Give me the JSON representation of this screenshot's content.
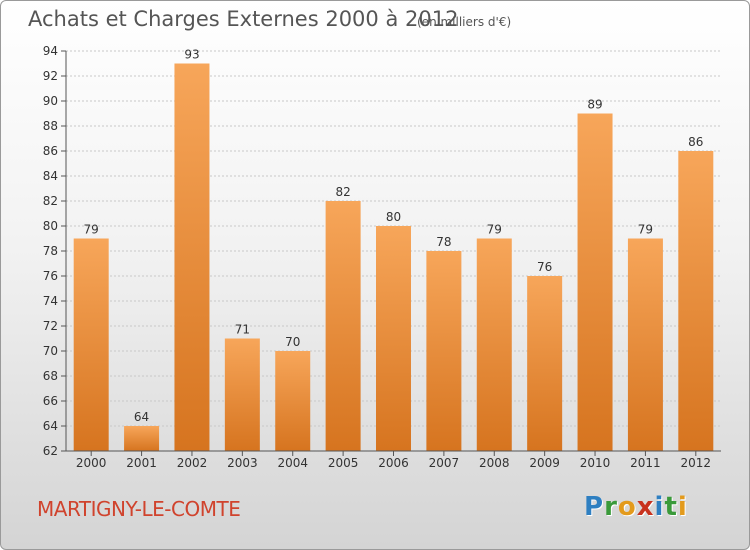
{
  "header": {
    "title": "Achats et Charges Externes 2000 à 2012",
    "subtitle": "(en milliers d'€)"
  },
  "footer": {
    "commune": "MARTIGNY-LE-COMTE",
    "brand": "Proxiti",
    "brand_letters": [
      {
        "char": "P",
        "color": "#2e7fc1"
      },
      {
        "char": "r",
        "color": "#3a9a3a"
      },
      {
        "char": "o",
        "color": "#e39a1c"
      },
      {
        "char": "x",
        "color": "#c8321e"
      },
      {
        "char": "i",
        "color": "#2e7fc1"
      },
      {
        "char": "t",
        "color": "#3a9a3a"
      },
      {
        "char": "i",
        "color": "#e39a1c"
      }
    ]
  },
  "chart_data": {
    "type": "bar",
    "categories": [
      "2000",
      "2001",
      "2002",
      "2003",
      "2004",
      "2005",
      "2006",
      "2007",
      "2008",
      "2009",
      "2010",
      "2011",
      "2012"
    ],
    "values": [
      79,
      64,
      93,
      71,
      70,
      82,
      80,
      78,
      79,
      76,
      89,
      79,
      86
    ],
    "ylim": [
      62,
      94
    ],
    "yticks": [
      62,
      64,
      66,
      68,
      70,
      72,
      74,
      76,
      78,
      80,
      82,
      84,
      86,
      88,
      90,
      92,
      94
    ],
    "grid": true,
    "bar_color_top": "#f7a65a",
    "bar_color_bottom": "#d6741f"
  }
}
